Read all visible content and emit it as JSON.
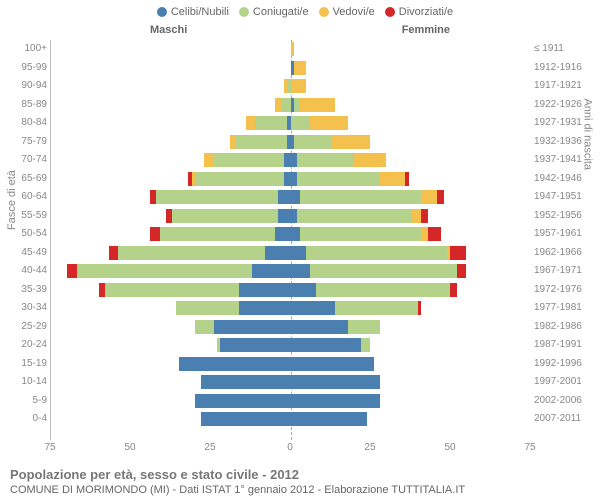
{
  "legend": {
    "items": [
      {
        "label": "Celibi/Nubili",
        "color": "#4a7fb0"
      },
      {
        "label": "Coniugati/e",
        "color": "#b4d28a"
      },
      {
        "label": "Vedovi/e",
        "color": "#f4c04e"
      },
      {
        "label": "Divorziati/e",
        "color": "#d62728"
      }
    ]
  },
  "side_titles": {
    "male": "Maschi",
    "female": "Femmine"
  },
  "axis_labels": {
    "left": "Fasce di età",
    "right": "Anni di nascita"
  },
  "xaxis": {
    "ticks": [
      75,
      50,
      25,
      0,
      25,
      50,
      75
    ],
    "max": 75
  },
  "footer": {
    "title": "Popolazione per età, sesso e stato civile - 2012",
    "subtitle": "COMUNE DI MORIMONDO (MI) - Dati ISTAT 1° gennaio 2012 - Elaborazione TUTTITALIA.IT"
  },
  "colors": {
    "celibi": "#4a7fb0",
    "coniugati": "#b4d28a",
    "vedovi": "#f4c04e",
    "divorziati": "#d62728",
    "grid": "#bbbbbb",
    "background": "#ffffff"
  },
  "rows": [
    {
      "age": "100+",
      "birth": "≤ 1911",
      "m": {
        "c": 0,
        "co": 0,
        "v": 0,
        "d": 0
      },
      "f": {
        "c": 0,
        "co": 0,
        "v": 1,
        "d": 0
      }
    },
    {
      "age": "95-99",
      "birth": "1912-1916",
      "m": {
        "c": 0,
        "co": 0,
        "v": 0,
        "d": 0
      },
      "f": {
        "c": 1,
        "co": 0,
        "v": 4,
        "d": 0
      }
    },
    {
      "age": "90-94",
      "birth": "1917-1921",
      "m": {
        "c": 0,
        "co": 1,
        "v": 1,
        "d": 0
      },
      "f": {
        "c": 0,
        "co": 0,
        "v": 5,
        "d": 0
      }
    },
    {
      "age": "85-89",
      "birth": "1922-1926",
      "m": {
        "c": 0,
        "co": 3,
        "v": 2,
        "d": 0
      },
      "f": {
        "c": 1,
        "co": 2,
        "v": 11,
        "d": 0
      }
    },
    {
      "age": "80-84",
      "birth": "1927-1931",
      "m": {
        "c": 1,
        "co": 10,
        "v": 3,
        "d": 0
      },
      "f": {
        "c": 0,
        "co": 6,
        "v": 12,
        "d": 0
      }
    },
    {
      "age": "75-79",
      "birth": "1932-1936",
      "m": {
        "c": 1,
        "co": 16,
        "v": 2,
        "d": 0
      },
      "f": {
        "c": 1,
        "co": 12,
        "v": 12,
        "d": 0
      }
    },
    {
      "age": "70-74",
      "birth": "1937-1941",
      "m": {
        "c": 2,
        "co": 22,
        "v": 3,
        "d": 0
      },
      "f": {
        "c": 2,
        "co": 18,
        "v": 10,
        "d": 0
      }
    },
    {
      "age": "65-69",
      "birth": "1942-1946",
      "m": {
        "c": 2,
        "co": 28,
        "v": 1,
        "d": 1
      },
      "f": {
        "c": 2,
        "co": 26,
        "v": 8,
        "d": 1
      }
    },
    {
      "age": "60-64",
      "birth": "1947-1951",
      "m": {
        "c": 4,
        "co": 38,
        "v": 0,
        "d": 2
      },
      "f": {
        "c": 3,
        "co": 38,
        "v": 5,
        "d": 2
      }
    },
    {
      "age": "55-59",
      "birth": "1952-1956",
      "m": {
        "c": 4,
        "co": 33,
        "v": 0,
        "d": 2
      },
      "f": {
        "c": 2,
        "co": 36,
        "v": 3,
        "d": 2
      }
    },
    {
      "age": "50-54",
      "birth": "1957-1961",
      "m": {
        "c": 5,
        "co": 36,
        "v": 0,
        "d": 3
      },
      "f": {
        "c": 3,
        "co": 38,
        "v": 2,
        "d": 4
      }
    },
    {
      "age": "45-49",
      "birth": "1962-1966",
      "m": {
        "c": 8,
        "co": 46,
        "v": 0,
        "d": 3
      },
      "f": {
        "c": 5,
        "co": 44,
        "v": 1,
        "d": 5
      }
    },
    {
      "age": "40-44",
      "birth": "1967-1971",
      "m": {
        "c": 12,
        "co": 55,
        "v": 0,
        "d": 3
      },
      "f": {
        "c": 6,
        "co": 46,
        "v": 0,
        "d": 3
      }
    },
    {
      "age": "35-39",
      "birth": "1972-1976",
      "m": {
        "c": 16,
        "co": 42,
        "v": 0,
        "d": 2
      },
      "f": {
        "c": 8,
        "co": 42,
        "v": 0,
        "d": 2
      }
    },
    {
      "age": "30-34",
      "birth": "1977-1981",
      "m": {
        "c": 16,
        "co": 20,
        "v": 0,
        "d": 0
      },
      "f": {
        "c": 14,
        "co": 26,
        "v": 0,
        "d": 1
      }
    },
    {
      "age": "25-29",
      "birth": "1982-1986",
      "m": {
        "c": 24,
        "co": 6,
        "v": 0,
        "d": 0
      },
      "f": {
        "c": 18,
        "co": 10,
        "v": 0,
        "d": 0
      }
    },
    {
      "age": "20-24",
      "birth": "1987-1991",
      "m": {
        "c": 22,
        "co": 1,
        "v": 0,
        "d": 0
      },
      "f": {
        "c": 22,
        "co": 3,
        "v": 0,
        "d": 0
      }
    },
    {
      "age": "15-19",
      "birth": "1992-1996",
      "m": {
        "c": 35,
        "co": 0,
        "v": 0,
        "d": 0
      },
      "f": {
        "c": 26,
        "co": 0,
        "v": 0,
        "d": 0
      }
    },
    {
      "age": "10-14",
      "birth": "1997-2001",
      "m": {
        "c": 28,
        "co": 0,
        "v": 0,
        "d": 0
      },
      "f": {
        "c": 28,
        "co": 0,
        "v": 0,
        "d": 0
      }
    },
    {
      "age": "5-9",
      "birth": "2002-2006",
      "m": {
        "c": 30,
        "co": 0,
        "v": 0,
        "d": 0
      },
      "f": {
        "c": 28,
        "co": 0,
        "v": 0,
        "d": 0
      }
    },
    {
      "age": "0-4",
      "birth": "2007-2011",
      "m": {
        "c": 28,
        "co": 0,
        "v": 0,
        "d": 0
      },
      "f": {
        "c": 24,
        "co": 0,
        "v": 0,
        "d": 0
      }
    }
  ]
}
